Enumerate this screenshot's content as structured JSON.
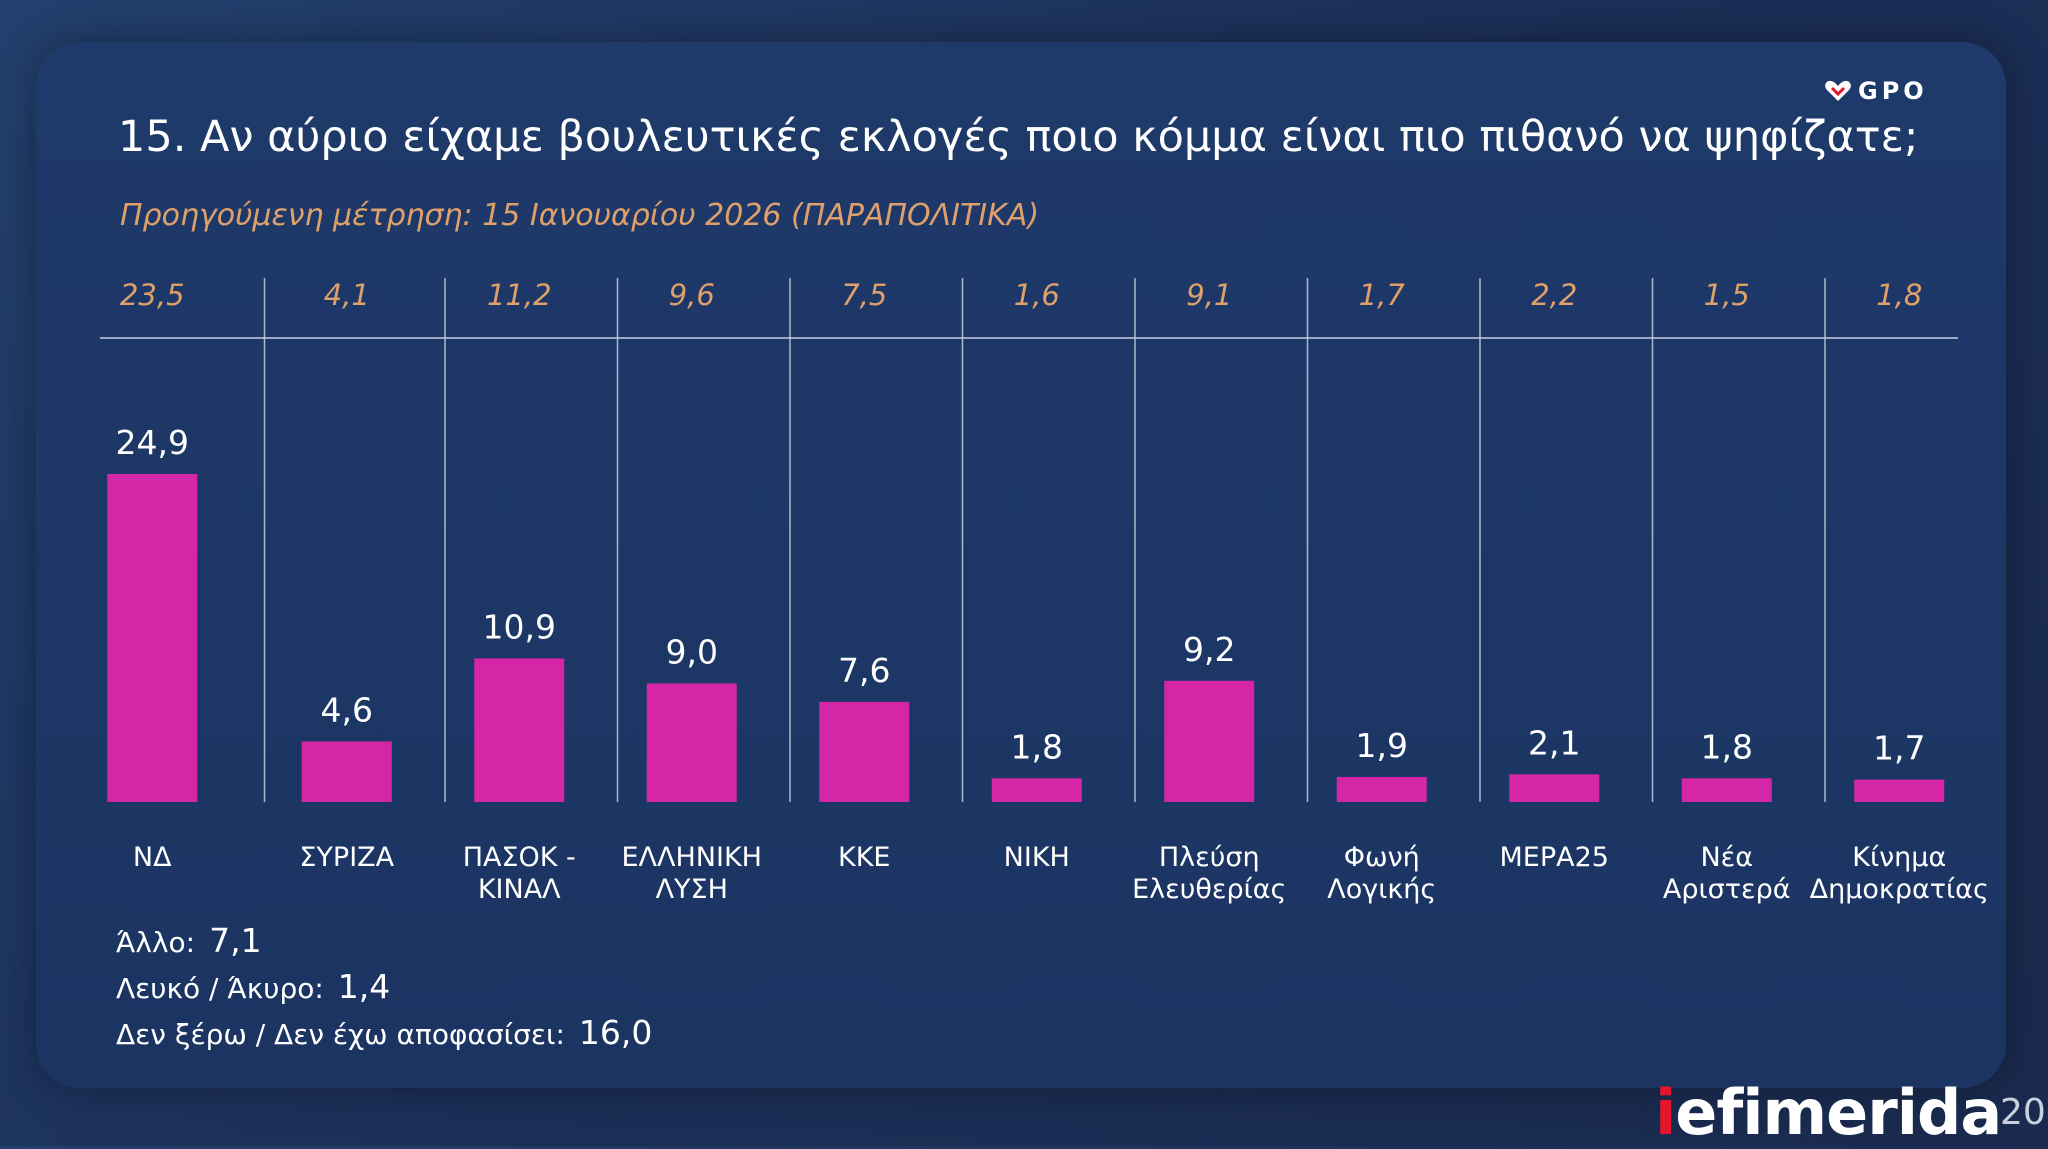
{
  "header": {
    "title": "15. Αν αύριο είχαμε βουλευτικές εκλογές ποιο κόμμα είναι πιο πιθανό να ψηφίζατε;",
    "subtitle": "Προηγούμενη μέτρηση: 15 Ιανουαρίου 2026 (ΠΑΡΑΠΟΛΙΤΙΚΑ)",
    "logo_text": "GPO"
  },
  "colors": {
    "bar": "#d426a6",
    "previous_value": "#e0a06a",
    "grid": "#c5cfe0",
    "text": "#ffffff"
  },
  "chart_data": {
    "type": "bar",
    "title": "15. Αν αύριο είχαμε βουλευτικές εκλογές ποιο κόμμα είναι πιο πιθανό να ψηφίζατε;",
    "categories": [
      [
        "ΝΔ"
      ],
      [
        "ΣΥΡΙΖΑ"
      ],
      [
        "ΠΑΣΟΚ -",
        "ΚΙΝΑΛ"
      ],
      [
        "ΕΛΛΗΝΙΚΗ",
        "ΛΥΣΗ"
      ],
      [
        "ΚΚΕ"
      ],
      [
        "ΝΙΚΗ"
      ],
      [
        "Πλεύση",
        "Ελευθερίας"
      ],
      [
        "Φωνή",
        "Λογικής"
      ],
      [
        "ΜΕΡΑ25"
      ],
      [
        "Νέα",
        "Αριστερά"
      ],
      [
        "Κίνημα",
        "Δημοκρατίας"
      ]
    ],
    "values": [
      24.9,
      4.6,
      10.9,
      9.0,
      7.6,
      1.8,
      9.2,
      1.9,
      2.1,
      1.8,
      1.7
    ],
    "value_labels": [
      "24,9",
      "4,6",
      "10,9",
      "9,0",
      "7,6",
      "1,8",
      "9,2",
      "1,9",
      "2,1",
      "1,8",
      "1,7"
    ],
    "previous_values": [
      23.5,
      4.1,
      11.2,
      9.6,
      7.5,
      1.6,
      9.1,
      1.7,
      2.2,
      1.5,
      1.8
    ],
    "previous_labels": [
      "23,5",
      "4,1",
      "11,2",
      "9,6",
      "7,5",
      "1,6",
      "9,1",
      "1,7",
      "2,2",
      "1,5",
      "1,8"
    ],
    "ylim": [
      0,
      24.9
    ],
    "grid": false
  },
  "others": [
    {
      "label": "Άλλο:",
      "value": "7,1"
    },
    {
      "label": "Λευκό / Άκυρο:",
      "value": "1,4"
    },
    {
      "label": "Δεν ξέρω / Δεν έχω αποφασίσει:",
      "value": "16,0"
    }
  ],
  "footer": {
    "brand_i": "i",
    "brand_rest": "efimerida",
    "page_number": "20"
  }
}
